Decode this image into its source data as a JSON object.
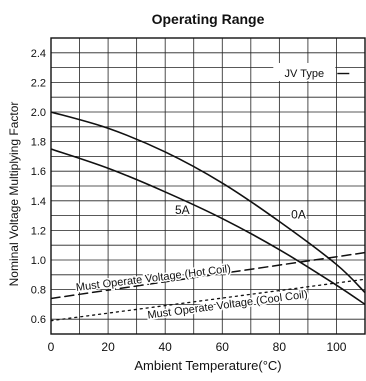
{
  "chart_data": {
    "type": "line",
    "title": "Operating Range",
    "xlabel": "Ambient Temperature(°C)",
    "ylabel": "Nominal Voltage Multiplying Factor",
    "xlim": [
      0,
      110
    ],
    "ylim": [
      0.5,
      2.5
    ],
    "x_ticks": [
      0,
      20,
      40,
      60,
      80,
      100
    ],
    "y_ticks": [
      0.6,
      0.8,
      1.0,
      1.2,
      1.4,
      1.6,
      1.8,
      2.0,
      2.2,
      2.4
    ],
    "grid": true,
    "legend_label": "JV Type",
    "legend_position": "top-right",
    "series": [
      {
        "name": "0A",
        "style": "solid",
        "x": [
          0,
          20,
          40,
          60,
          80,
          100,
          110
        ],
        "y": [
          2.0,
          1.89,
          1.73,
          1.52,
          1.26,
          0.97,
          0.78
        ]
      },
      {
        "name": "5A",
        "style": "solid",
        "x": [
          0,
          20,
          40,
          60,
          80,
          100,
          110
        ],
        "y": [
          1.75,
          1.62,
          1.46,
          1.28,
          1.07,
          0.83,
          0.7
        ]
      },
      {
        "name": "Must Operate Voltage (Hot Coil)",
        "style": "dashed",
        "x": [
          0,
          110
        ],
        "y": [
          0.74,
          1.05
        ]
      },
      {
        "name": "Must Operate Voltage (Cool Coil)",
        "style": "dotted",
        "x": [
          0,
          110
        ],
        "y": [
          0.59,
          0.87
        ]
      }
    ]
  },
  "colors": {
    "background": "#ffffff",
    "ink": "#111111",
    "grid": "#222222"
  }
}
